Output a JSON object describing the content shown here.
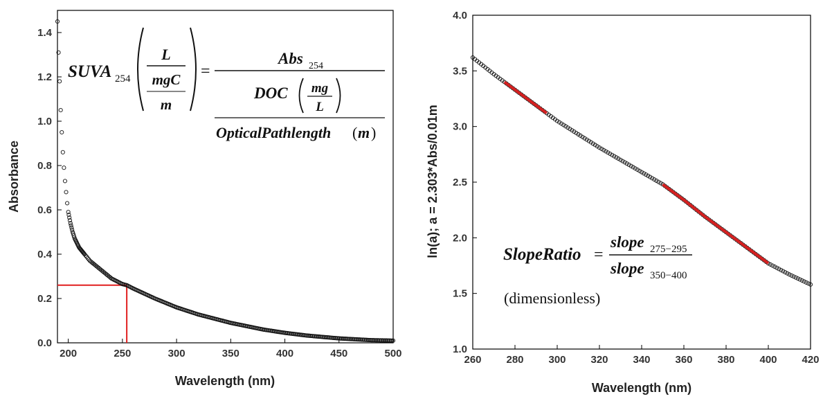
{
  "chart_data": [
    {
      "type": "scatter",
      "xlabel": "Wavelength (nm)",
      "ylabel": "Absorbance",
      "xlim": [
        190,
        500
      ],
      "ylim": [
        0.0,
        1.5
      ],
      "xticks": [
        "200",
        "250",
        "300",
        "350",
        "400",
        "450",
        "500"
      ],
      "yticks": [
        "0.0",
        "0.2",
        "0.4",
        "0.6",
        "0.8",
        "1.0",
        "1.2",
        "1.4"
      ],
      "series": [
        {
          "marker": "open-circle",
          "color": "#111111",
          "x": [
            190,
            191,
            192,
            193,
            194,
            195,
            196,
            197,
            198,
            199,
            200,
            202,
            204,
            206,
            208,
            210,
            215,
            220,
            230,
            240,
            250,
            254,
            260,
            280,
            300,
            320,
            350,
            380,
            400,
            420,
            450,
            480,
            500
          ],
          "y": [
            1.45,
            1.31,
            1.18,
            1.05,
            0.95,
            0.86,
            0.79,
            0.73,
            0.68,
            0.63,
            0.59,
            0.54,
            0.5,
            0.47,
            0.45,
            0.43,
            0.4,
            0.37,
            0.33,
            0.29,
            0.265,
            0.26,
            0.245,
            0.2,
            0.16,
            0.128,
            0.09,
            0.06,
            0.045,
            0.033,
            0.02,
            0.012,
            0.01
          ]
        }
      ],
      "annotation_lines": [
        {
          "color": "#e11e1e",
          "from": [
            190,
            0.26
          ],
          "to": [
            254,
            0.26
          ]
        },
        {
          "color": "#e11e1e",
          "from": [
            254,
            0.26
          ],
          "to": [
            254,
            0.0
          ]
        }
      ],
      "equation": {
        "lhs": "SUVA",
        "lhs_sub": "254",
        "unit_num": "L",
        "unit_den_top": "mgC",
        "unit_den_bottom": "m",
        "equals": "=",
        "rhs_num": "Abs",
        "rhs_num_sub": "254",
        "doc": "DOC",
        "doc_unit_top": "mg",
        "doc_unit_bottom": "L",
        "pathlength": "OpticalPathlength",
        "pathlength_unit": "m"
      }
    },
    {
      "type": "scatter",
      "xlabel": "Wavelength (nm)",
      "ylabel": "ln(a); a = 2.303*Abs/0.01m",
      "xlim": [
        260,
        420
      ],
      "ylim": [
        1.0,
        4.0
      ],
      "xticks": [
        "260",
        "280",
        "300",
        "320",
        "340",
        "360",
        "380",
        "400",
        "420"
      ],
      "yticks": [
        "1.0",
        "1.5",
        "2.0",
        "2.5",
        "3.0",
        "3.5",
        "4.0"
      ],
      "series": [
        {
          "marker": "open-circle",
          "color": "#111111",
          "x": [
            260,
            270,
            280,
            290,
            300,
            310,
            320,
            330,
            340,
            350,
            360,
            370,
            380,
            390,
            400,
            410,
            420
          ],
          "y": [
            3.62,
            3.47,
            3.33,
            3.19,
            3.05,
            2.93,
            2.81,
            2.7,
            2.59,
            2.48,
            2.34,
            2.19,
            2.05,
            1.91,
            1.77,
            1.67,
            1.58
          ]
        }
      ],
      "highlight_ranges": [
        {
          "color": "#d42020",
          "x_from": 275,
          "x_to": 295
        },
        {
          "color": "#d42020",
          "x_from": 350,
          "x_to": 400
        }
      ],
      "equation": {
        "lhs": "SlopeRatio",
        "equals": "=",
        "num": "slope",
        "num_sub": "275−295",
        "den": "slope",
        "den_sub": "350−400",
        "note": "(dimensionless)"
      }
    }
  ]
}
